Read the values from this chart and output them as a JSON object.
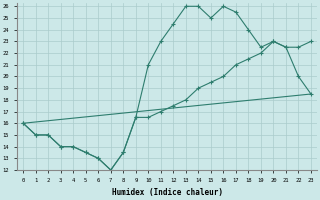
{
  "xlabel": "Humidex (Indice chaleur)",
  "bg_color": "#cce8e8",
  "line_color": "#2e7d6e",
  "grid_color": "#aacccc",
  "x_min": 0,
  "x_max": 23,
  "y_min": 12,
  "y_max": 26,
  "line1_x": [
    0,
    1,
    2,
    3,
    4,
    5,
    6,
    7,
    8,
    9,
    10,
    11,
    12,
    13,
    14,
    15,
    16,
    17,
    18,
    19,
    20,
    21,
    22,
    23
  ],
  "line1_y": [
    16,
    15,
    15,
    14,
    14,
    13.5,
    13,
    12,
    13.5,
    16.5,
    21,
    23,
    24.5,
    26,
    26,
    25,
    26,
    25.5,
    24,
    22.5,
    23,
    22.5,
    20,
    18.5
  ],
  "line2_x": [
    0,
    23
  ],
  "line2_y": [
    16,
    18.5
  ],
  "line3_x": [
    0,
    1,
    2,
    3,
    4,
    5,
    6,
    7,
    8,
    9,
    10,
    11,
    12,
    13,
    14,
    15,
    16,
    17,
    18,
    19,
    20,
    21,
    22,
    23
  ],
  "line3_y": [
    16,
    15,
    15,
    14,
    14,
    13.5,
    13,
    12,
    13.5,
    16.5,
    16.5,
    17,
    17.5,
    18,
    19,
    19.5,
    20,
    21,
    21.5,
    22,
    23,
    22.5,
    22.5,
    23
  ]
}
